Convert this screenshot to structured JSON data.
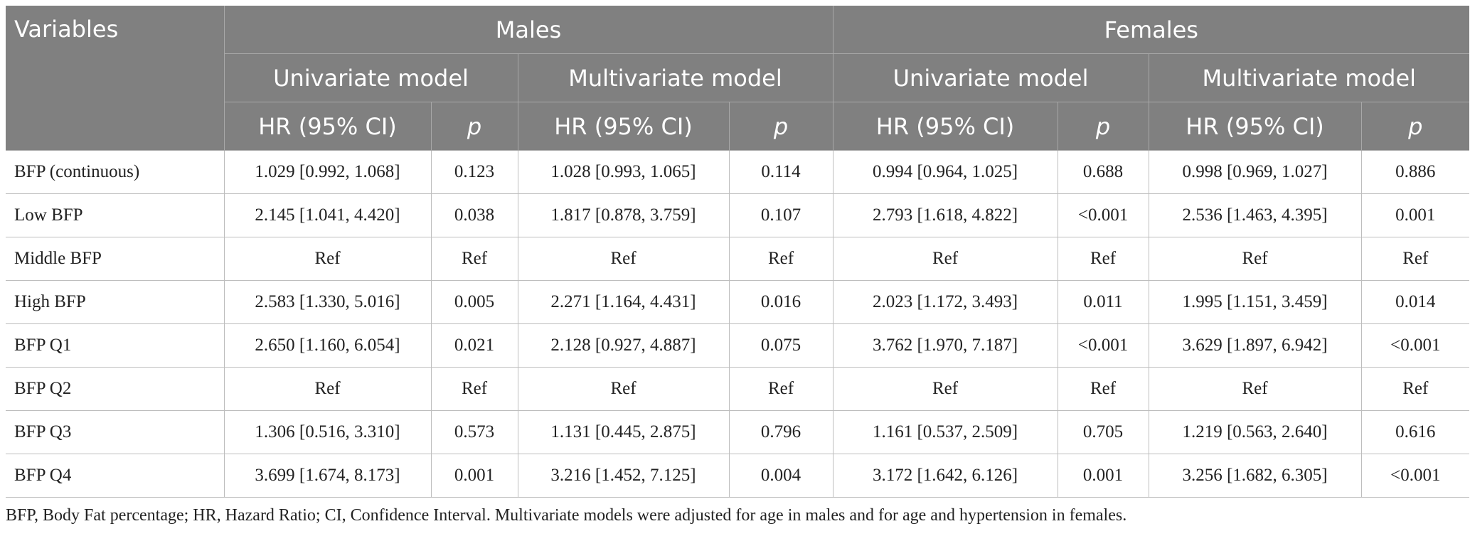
{
  "header": {
    "variables": "Variables",
    "males": "Males",
    "females": "Females",
    "univariate": "Univariate model",
    "multivariate": "Multivariate model",
    "hr": "HR (95% CI)",
    "p": "p"
  },
  "rows": [
    {
      "label": "BFP (continuous)",
      "m_uni_hr": "1.029 [0.992, 1.068]",
      "m_uni_p": "0.123",
      "m_multi_hr": "1.028 [0.993, 1.065]",
      "m_multi_p": "0.114",
      "f_uni_hr": "0.994 [0.964, 1.025]",
      "f_uni_p": "0.688",
      "f_multi_hr": "0.998 [0.969, 1.027]",
      "f_multi_p": "0.886"
    },
    {
      "label": "Low BFP",
      "m_uni_hr": "2.145 [1.041, 4.420]",
      "m_uni_p": "0.038",
      "m_multi_hr": "1.817 [0.878, 3.759]",
      "m_multi_p": "0.107",
      "f_uni_hr": "2.793 [1.618, 4.822]",
      "f_uni_p": "<0.001",
      "f_multi_hr": "2.536 [1.463, 4.395]",
      "f_multi_p": "0.001"
    },
    {
      "label": "Middle BFP",
      "m_uni_hr": "Ref",
      "m_uni_p": "Ref",
      "m_multi_hr": "Ref",
      "m_multi_p": "Ref",
      "f_uni_hr": "Ref",
      "f_uni_p": "Ref",
      "f_multi_hr": "Ref",
      "f_multi_p": "Ref"
    },
    {
      "label": "High BFP",
      "m_uni_hr": "2.583 [1.330, 5.016]",
      "m_uni_p": "0.005",
      "m_multi_hr": "2.271 [1.164, 4.431]",
      "m_multi_p": "0.016",
      "f_uni_hr": "2.023 [1.172, 3.493]",
      "f_uni_p": "0.011",
      "f_multi_hr": "1.995 [1.151, 3.459]",
      "f_multi_p": "0.014"
    },
    {
      "label": "BFP Q1",
      "m_uni_hr": "2.650 [1.160, 6.054]",
      "m_uni_p": "0.021",
      "m_multi_hr": "2.128 [0.927, 4.887]",
      "m_multi_p": "0.075",
      "f_uni_hr": "3.762 [1.970, 7.187]",
      "f_uni_p": "<0.001",
      "f_multi_hr": "3.629 [1.897, 6.942]",
      "f_multi_p": "<0.001"
    },
    {
      "label": "BFP Q2",
      "m_uni_hr": "Ref",
      "m_uni_p": "Ref",
      "m_multi_hr": "Ref",
      "m_multi_p": "Ref",
      "f_uni_hr": "Ref",
      "f_uni_p": "Ref",
      "f_multi_hr": "Ref",
      "f_multi_p": "Ref"
    },
    {
      "label": "BFP Q3",
      "m_uni_hr": "1.306 [0.516, 3.310]",
      "m_uni_p": "0.573",
      "m_multi_hr": "1.131 [0.445, 2.875]",
      "m_multi_p": "0.796",
      "f_uni_hr": "1.161 [0.537, 2.509]",
      "f_uni_p": "0.705",
      "f_multi_hr": "1.219 [0.563, 2.640]",
      "f_multi_p": "0.616"
    },
    {
      "label": "BFP Q4",
      "m_uni_hr": "3.699 [1.674, 8.173]",
      "m_uni_p": "0.001",
      "m_multi_hr": "3.216 [1.452, 7.125]",
      "m_multi_p": "0.004",
      "f_uni_hr": "3.172 [1.642, 6.126]",
      "f_uni_p": "0.001",
      "f_multi_hr": "3.256 [1.682, 6.305]",
      "f_multi_p": "<0.001"
    }
  ],
  "footnote": "BFP, Body Fat percentage; HR, Hazard Ratio; CI, Confidence Interval. Multivariate models were adjusted for age in males and for age and hypertension in females."
}
